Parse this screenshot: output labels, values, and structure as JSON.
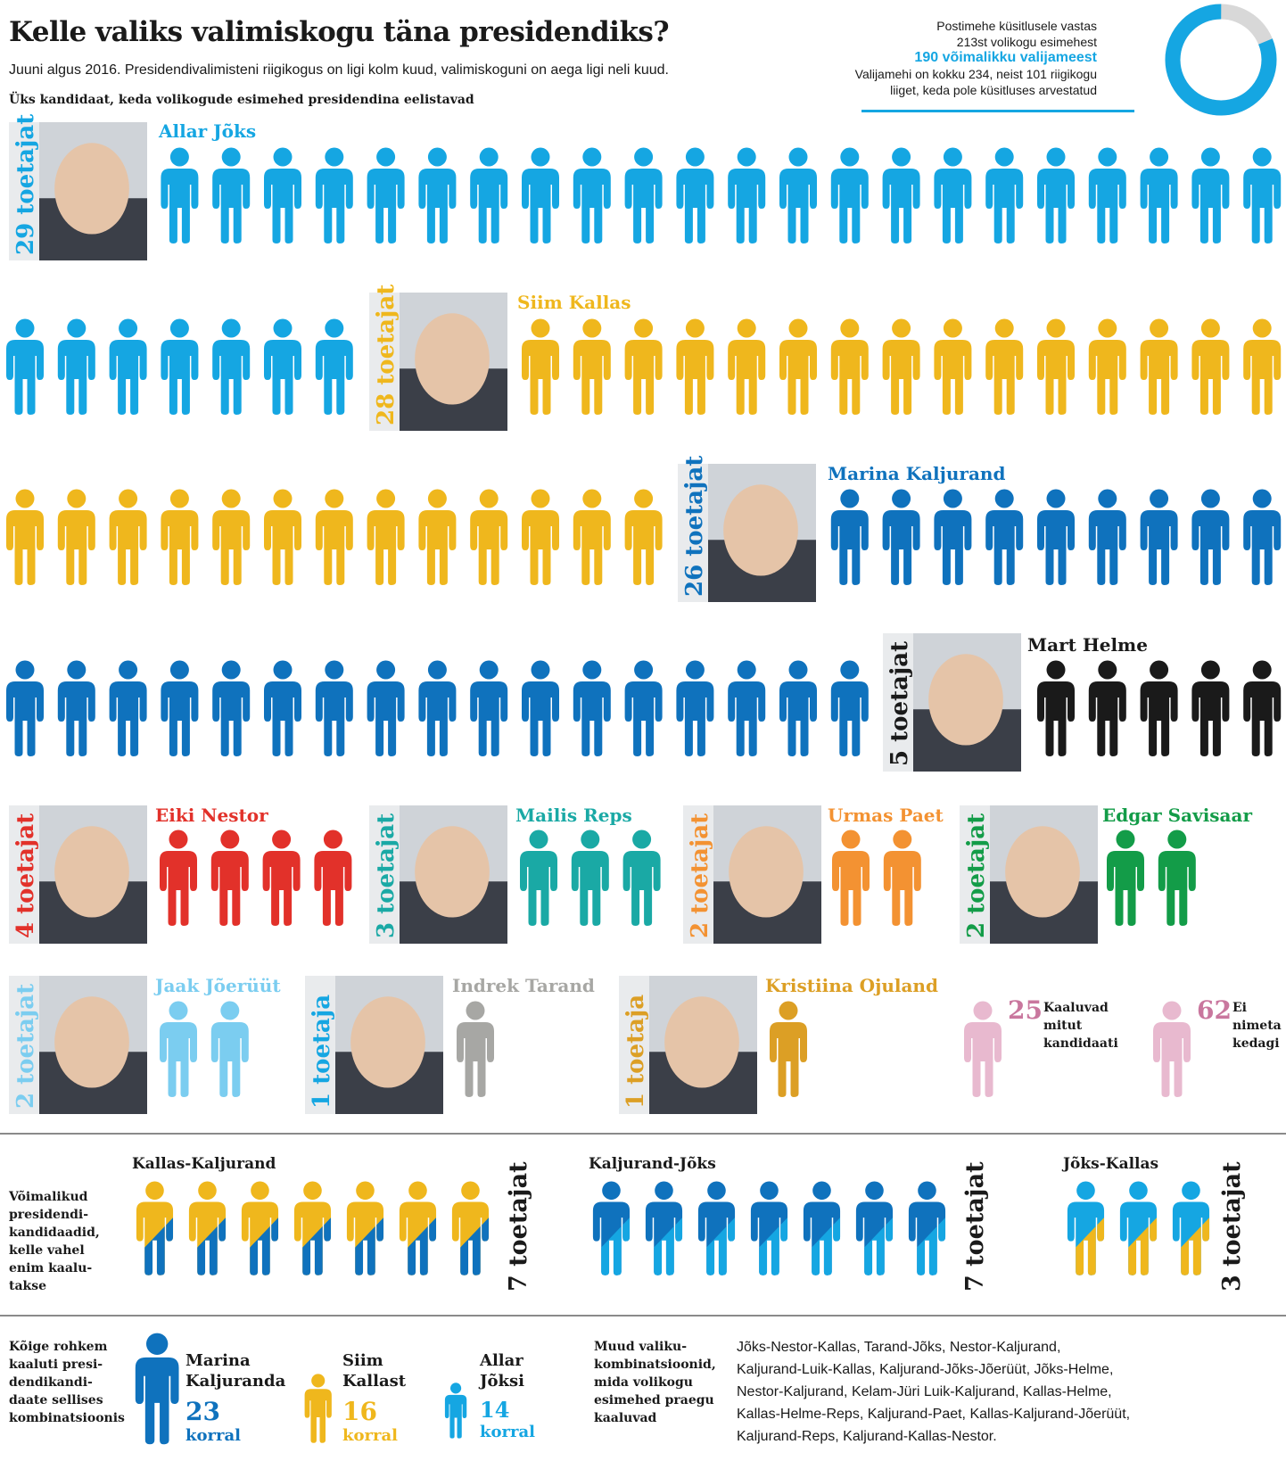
{
  "title": "Kelle valiks valimiskogu täna presidendiks?",
  "subtitle": "Juuni algus 2016. Presidendivalimisteni riigikogus on ligi kolm kuud, valimiskoguni on aega ligi neli kuud.",
  "subhead": "Üks kandidaat, keda volikogude esimehed presidendina eelistavad",
  "survey": {
    "line1": "Postimehe küsitlusele vastas",
    "line2": "213st volikogu esimehest",
    "highlight": "190 võimalikku valijameest",
    "line3": "Valijamehi on kokku 234, neist 101 riigikogu",
    "line4": "liiget, keda pole küsitluses arvestatud",
    "donut_share": 0.812,
    "colors": {
      "main": "#15a6e2",
      "rest": "#d8d8d8"
    }
  },
  "chart_data": {
    "type": "pictogram",
    "unit": "1 figure = 1 supporter",
    "candidates": [
      {
        "name": "Allar Jõks",
        "label": "29 toetajat",
        "value": 29,
        "color": "#15a6e2"
      },
      {
        "name": "Siim Kallas",
        "label": "28 toetajat",
        "value": 28,
        "color": "#efb71d"
      },
      {
        "name": "Marina Kaljurand",
        "label": "26 toetajat",
        "value": 26,
        "color": "#0f72bd"
      },
      {
        "name": "Mart Helme",
        "label": "5 toetajat",
        "value": 5,
        "color": "#1a1a1a"
      },
      {
        "name": "Eiki Nestor",
        "label": "4 toetajat",
        "value": 4,
        "color": "#e2312a"
      },
      {
        "name": "Mailis Reps",
        "label": "3 toetajat",
        "value": 3,
        "color": "#1aa9a5"
      },
      {
        "name": "Urmas Paet",
        "label": "2 toetajat",
        "value": 2,
        "color": "#f39232"
      },
      {
        "name": "Edgar Savisaar",
        "label": "2 toetajat",
        "value": 2,
        "color": "#139c48"
      },
      {
        "name": "Jaak Jõerüüt",
        "label": "2 toetajat",
        "value": 2,
        "color": "#7bcdf0"
      },
      {
        "name": "Indrek Tarand",
        "label": "1 toetaja",
        "value": 1,
        "color": "#a7a7a4"
      },
      {
        "name": "Kristiina Ojuland",
        "label": "1 toetaja",
        "value": 1,
        "color": "#dc9f25"
      }
    ],
    "other": [
      {
        "value": 25,
        "text_lines": [
          "Kaaluvad",
          "mitut",
          "kandidaati"
        ],
        "color": "#e8b9cf"
      },
      {
        "value": 62,
        "text_lines": [
          "Ei",
          "nimeta",
          "kedagi"
        ],
        "color": "#e8b9cf"
      }
    ],
    "combinations_label_lines": [
      "Võimalikud",
      "presidendi-",
      "kandidaadid,",
      "kelle vahel",
      "enim kaalu-",
      "takse"
    ],
    "combinations": [
      {
        "name": "Kallas-Kaljurand",
        "label": "7 toetajat",
        "value": 7,
        "colors": [
          "#efb71d",
          "#0f72bd"
        ]
      },
      {
        "name": "Kaljurand-Jõks",
        "label": "7 toetajat",
        "value": 7,
        "colors": [
          "#0f72bd",
          "#15a6e2"
        ]
      },
      {
        "name": "Jõks-Kallas",
        "label": "3 toetajat",
        "value": 3,
        "colors": [
          "#15a6e2",
          "#efb71d"
        ]
      }
    ],
    "most_in_combos_label_lines": [
      "Kõige rohkem",
      "kaaluti presi-",
      "dendikandi-",
      "daate sellises",
      "kombinatsioonis"
    ],
    "most_in_combos": [
      {
        "name_lines": [
          "Marina",
          "Kaljuranda"
        ],
        "value": 23,
        "unit": "korral",
        "color": "#0f72bd"
      },
      {
        "name_lines": [
          "Siim",
          "Kallast"
        ],
        "value": 16,
        "unit": "korral",
        "color": "#efb71d"
      },
      {
        "name_lines": [
          "Allar",
          "Jõksi"
        ],
        "value": 14,
        "unit": "korral",
        "color": "#15a6e2"
      }
    ],
    "other_combos_label_lines": [
      "Muud valiku-",
      "kombinatsioonid,",
      "mida volikogu",
      "esimehed praegu",
      "kaaluvad"
    ],
    "other_combos_lines": [
      "Jõks-Nestor-Kallas, Tarand-Jõks, Nestor-Kaljurand,",
      "Kaljurand-Luik-Kallas, Kaljurand-Jõks-Jõerüüt, Jõks-Helme,",
      "Nestor-Kaljurand, Kelam-Jüri Luik-Kaljurand, Kallas-Helme,",
      "Kallas-Helme-Reps, Kaljurand-Paet, Kallas-Kaljurand-Jõerüüt,",
      "Kaljurand-Reps, Kaljurand-Kallas-Nestor."
    ]
  }
}
